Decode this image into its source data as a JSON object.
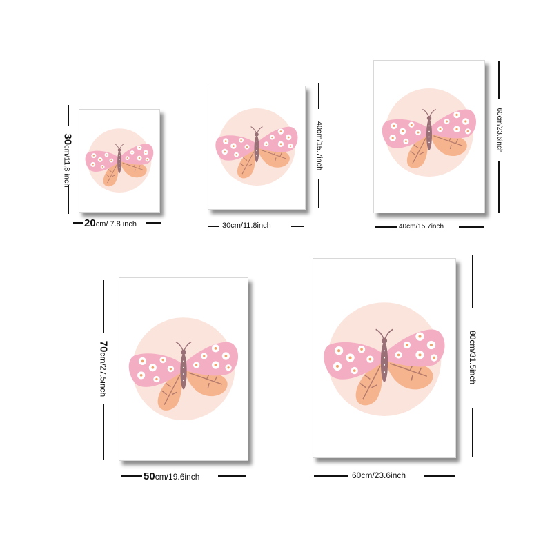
{
  "sizes": [
    {
      "width_big": "20",
      "width_small": "cm/ 7.8 inch",
      "height_big": "30",
      "height_small": "cm/11.8 inch"
    },
    {
      "width_label": "30cm/11.8inch",
      "height_label": "40cm/15.7inch"
    },
    {
      "width_label": "40cm/15.7inch",
      "height_label": "60cm/23.6inch"
    },
    {
      "width_big": "50",
      "width_small": "cm/19.6inch",
      "height_big": "70",
      "height_small": "cm/27.5inch"
    },
    {
      "width_label": "60cm/23.6inch",
      "height_label": "80cm/31.5inch"
    }
  ],
  "colors": {
    "circle": "#fbe4dc",
    "wing_pink": "#f4aec4",
    "wing_orange": "#f6b48e",
    "body": "#9a7077",
    "flower": "#ffffff",
    "flower_center": "#f2a36a"
  }
}
